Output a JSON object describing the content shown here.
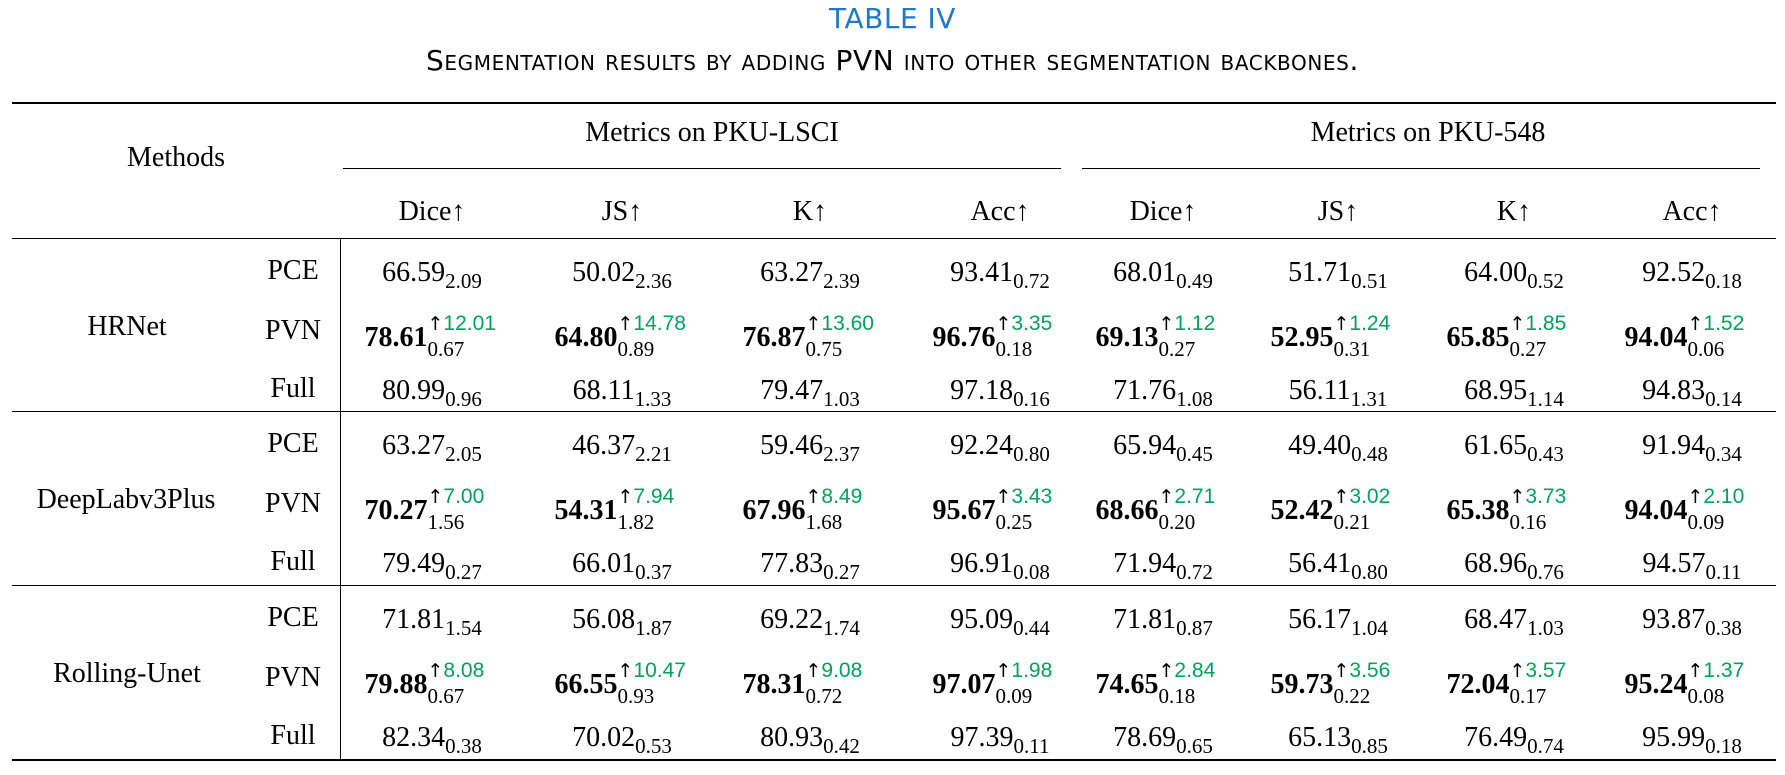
{
  "table": {
    "number": "TABLE IV",
    "caption": "Segmentation results by adding PVN into other segmentation backbones.",
    "header": {
      "methods": "Methods",
      "group1": "Metrics on PKU-LSCI",
      "group2": "Metrics on PKU-548",
      "metrics": [
        "Dice↑",
        "JS↑",
        "K↑",
        "Acc↑",
        "Dice↑",
        "JS↑",
        "K↑",
        "Acc↑"
      ]
    },
    "groups": [
      {
        "method": "HRNet",
        "rows": [
          {
            "variant": "PCE",
            "bold": false,
            "cells": [
              {
                "v": "66.59",
                "s": "2.09"
              },
              {
                "v": "50.02",
                "s": "2.36"
              },
              {
                "v": "63.27",
                "s": "2.39"
              },
              {
                "v": "93.41",
                "s": "0.72"
              },
              {
                "v": "68.01",
                "s": "0.49"
              },
              {
                "v": "51.71",
                "s": "0.51"
              },
              {
                "v": "64.00",
                "s": "0.52"
              },
              {
                "v": "92.52",
                "s": "0.18"
              }
            ]
          },
          {
            "variant": "PVN",
            "bold": true,
            "cells": [
              {
                "v": "78.61",
                "s": "0.67",
                "gain": "12.01"
              },
              {
                "v": "64.80",
                "s": "0.89",
                "gain": "14.78"
              },
              {
                "v": "76.87",
                "s": "0.75",
                "gain": "13.60"
              },
              {
                "v": "96.76",
                "s": "0.18",
                "gain": "3.35"
              },
              {
                "v": "69.13",
                "s": "0.27",
                "gain": "1.12"
              },
              {
                "v": "52.95",
                "s": "0.31",
                "gain": "1.24"
              },
              {
                "v": "65.85",
                "s": "0.27",
                "gain": "1.85"
              },
              {
                "v": "94.04",
                "s": "0.06",
                "gain": "1.52"
              }
            ]
          },
          {
            "variant": "Full",
            "bold": false,
            "cells": [
              {
                "v": "80.99",
                "s": "0.96"
              },
              {
                "v": "68.11",
                "s": "1.33"
              },
              {
                "v": "79.47",
                "s": "1.03"
              },
              {
                "v": "97.18",
                "s": "0.16"
              },
              {
                "v": "71.76",
                "s": "1.08"
              },
              {
                "v": "56.11",
                "s": "1.31"
              },
              {
                "v": "68.95",
                "s": "1.14"
              },
              {
                "v": "94.83",
                "s": "0.14"
              }
            ]
          }
        ]
      },
      {
        "method": "DeepLabv3Plus",
        "rows": [
          {
            "variant": "PCE",
            "bold": false,
            "cells": [
              {
                "v": "63.27",
                "s": "2.05"
              },
              {
                "v": "46.37",
                "s": "2.21"
              },
              {
                "v": "59.46",
                "s": "2.37"
              },
              {
                "v": "92.24",
                "s": "0.80"
              },
              {
                "v": "65.94",
                "s": "0.45"
              },
              {
                "v": "49.40",
                "s": "0.48"
              },
              {
                "v": "61.65",
                "s": "0.43"
              },
              {
                "v": "91.94",
                "s": "0.34"
              }
            ]
          },
          {
            "variant": "PVN",
            "bold": true,
            "cells": [
              {
                "v": "70.27",
                "s": "1.56",
                "gain": "7.00"
              },
              {
                "v": "54.31",
                "s": "1.82",
                "gain": "7.94"
              },
              {
                "v": "67.96",
                "s": "1.68",
                "gain": "8.49"
              },
              {
                "v": "95.67",
                "s": "0.25",
                "gain": "3.43"
              },
              {
                "v": "68.66",
                "s": "0.20",
                "gain": "2.71"
              },
              {
                "v": "52.42",
                "s": "0.21",
                "gain": "3.02"
              },
              {
                "v": "65.38",
                "s": "0.16",
                "gain": "3.73"
              },
              {
                "v": "94.04",
                "s": "0.09",
                "gain": "2.10"
              }
            ]
          },
          {
            "variant": "Full",
            "bold": false,
            "cells": [
              {
                "v": "79.49",
                "s": "0.27"
              },
              {
                "v": "66.01",
                "s": "0.37"
              },
              {
                "v": "77.83",
                "s": "0.27"
              },
              {
                "v": "96.91",
                "s": "0.08"
              },
              {
                "v": "71.94",
                "s": "0.72"
              },
              {
                "v": "56.41",
                "s": "0.80"
              },
              {
                "v": "68.96",
                "s": "0.76"
              },
              {
                "v": "94.57",
                "s": "0.11"
              }
            ]
          }
        ]
      },
      {
        "method": "Rolling-Unet",
        "rows": [
          {
            "variant": "PCE",
            "bold": false,
            "cells": [
              {
                "v": "71.81",
                "s": "1.54"
              },
              {
                "v": "56.08",
                "s": "1.87"
              },
              {
                "v": "69.22",
                "s": "1.74"
              },
              {
                "v": "95.09",
                "s": "0.44"
              },
              {
                "v": "71.81",
                "s": "0.87"
              },
              {
                "v": "56.17",
                "s": "1.04"
              },
              {
                "v": "68.47",
                "s": "1.03"
              },
              {
                "v": "93.87",
                "s": "0.38"
              }
            ]
          },
          {
            "variant": "PVN",
            "bold": true,
            "cells": [
              {
                "v": "79.88",
                "s": "0.67",
                "gain": "8.08"
              },
              {
                "v": "66.55",
                "s": "0.93",
                "gain": "10.47"
              },
              {
                "v": "78.31",
                "s": "0.72",
                "gain": "9.08"
              },
              {
                "v": "97.07",
                "s": "0.09",
                "gain": "1.98"
              },
              {
                "v": "74.65",
                "s": "0.18",
                "gain": "2.84"
              },
              {
                "v": "59.73",
                "s": "0.22",
                "gain": "3.56"
              },
              {
                "v": "72.04",
                "s": "0.17",
                "gain": "3.57"
              },
              {
                "v": "95.24",
                "s": "0.08",
                "gain": "1.37"
              }
            ]
          },
          {
            "variant": "Full",
            "bold": false,
            "cells": [
              {
                "v": "82.34",
                "s": "0.38"
              },
              {
                "v": "70.02",
                "s": "0.53"
              },
              {
                "v": "80.93",
                "s": "0.42"
              },
              {
                "v": "97.39",
                "s": "0.11"
              },
              {
                "v": "78.69",
                "s": "0.65"
              },
              {
                "v": "65.13",
                "s": "0.85"
              },
              {
                "v": "76.49",
                "s": "0.74"
              },
              {
                "v": "95.99",
                "s": "0.18"
              }
            ]
          }
        ]
      }
    ]
  }
}
